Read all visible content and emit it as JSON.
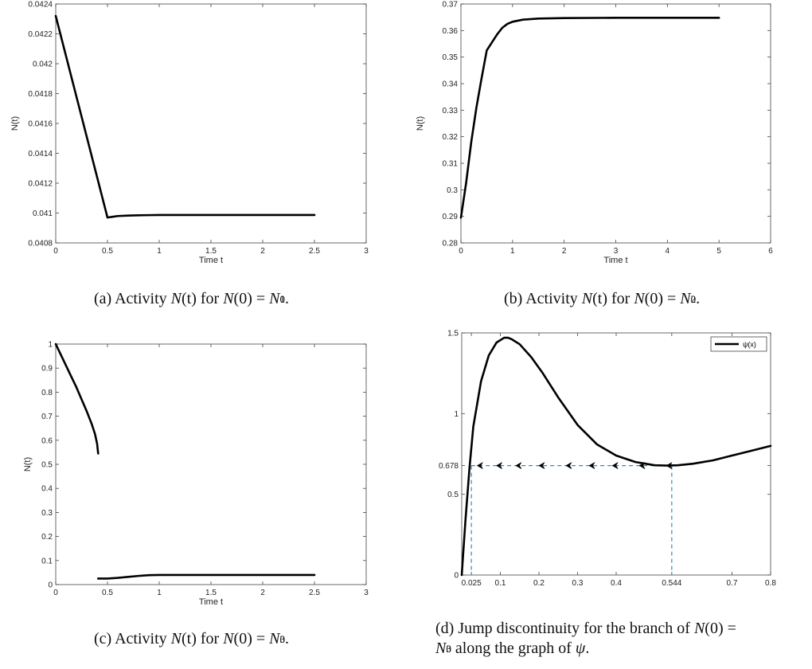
{
  "captions": {
    "a": {
      "label": "(a) Activity",
      "var": "N",
      "mid": "(t) for",
      "lhs": "N",
      "arg": "(0) =",
      "rhs": "N",
      "sup": "1",
      "sub": "0",
      "end": "."
    },
    "b": {
      "label": "(b) Activity",
      "var": "N",
      "mid": "(t) for",
      "lhs": "N",
      "arg": "(0) =",
      "rhs": "N",
      "sup": "2",
      "sub": "0",
      "end": "."
    },
    "c": {
      "label": "(c) Activity",
      "var": "N",
      "mid": "(t) for",
      "lhs": "N",
      "arg": "(0) =",
      "rhs": "N",
      "sup": "3",
      "sub": "0",
      "end": "."
    },
    "d": {
      "line1": "(d) Jump discontinuity for the branch of",
      "lhs": "N",
      "arg": "(0) =",
      "rhs": "N",
      "sup": "3",
      "sub": "0",
      "line2": "along the graph of",
      "psi": "ψ",
      "end": "."
    }
  },
  "chart_data": [
    {
      "id": "a",
      "type": "line",
      "xlabel": "Time t",
      "ylabel": "N(t)",
      "xlim": [
        0,
        3
      ],
      "ylim": [
        0.0408,
        0.0424
      ],
      "xticks": [
        0,
        0.5,
        1,
        1.5,
        2,
        2.5,
        3
      ],
      "xticklabels": [
        "0",
        "0.5",
        "1",
        "1.5",
        "2",
        "2.5",
        "3"
      ],
      "yticks": [
        0.0408,
        0.041,
        0.0412,
        0.0414,
        0.0416,
        0.0418,
        0.042,
        0.0422,
        0.0424
      ],
      "yticklabels": [
        "0.0408",
        "0.041",
        "0.0412",
        "0.0414",
        "0.0416",
        "0.0418",
        "0.042",
        "0.0422",
        "0.0424"
      ],
      "series": [
        {
          "x": [
            0,
            0.5,
            0.55,
            0.6,
            0.7,
            0.8,
            0.9,
            1.0,
            1.2,
            1.5,
            2.0,
            2.5
          ],
          "y": [
            0.04232,
            0.04097,
            0.040975,
            0.04098,
            0.040983,
            0.040985,
            0.040986,
            0.040987,
            0.040987,
            0.040987,
            0.040987,
            0.040987
          ]
        }
      ]
    },
    {
      "id": "b",
      "type": "line",
      "xlabel": "Time t",
      "ylabel": "N(t)",
      "xlim": [
        0,
        6
      ],
      "ylim": [
        0.28,
        0.37
      ],
      "xticks": [
        0,
        1,
        2,
        3,
        4,
        5,
        6
      ],
      "xticklabels": [
        "0",
        "1",
        "2",
        "3",
        "4",
        "5",
        "6"
      ],
      "yticks": [
        0.28,
        0.29,
        0.3,
        0.31,
        0.32,
        0.33,
        0.34,
        0.35,
        0.36,
        0.37
      ],
      "yticklabels": [
        "0.28",
        "0.29",
        "0.3",
        "0.31",
        "0.32",
        "0.33",
        "0.34",
        "0.35",
        "0.36",
        "0.37"
      ],
      "series": [
        {
          "x": [
            0,
            0.1,
            0.2,
            0.3,
            0.4,
            0.5,
            0.6,
            0.7,
            0.8,
            0.9,
            1.0,
            1.2,
            1.5,
            2.0,
            3.0,
            4.0,
            5.0
          ],
          "y": [
            0.2895,
            0.3025,
            0.318,
            0.331,
            0.342,
            0.3525,
            0.3555,
            0.3585,
            0.361,
            0.3625,
            0.3633,
            0.3641,
            0.3645,
            0.3647,
            0.3648,
            0.3648,
            0.3648
          ]
        }
      ]
    },
    {
      "id": "c",
      "type": "line",
      "xlabel": "Time t",
      "ylabel": "N(t)",
      "xlim": [
        0,
        3
      ],
      "ylim": [
        0,
        1
      ],
      "xticks": [
        0,
        0.5,
        1,
        1.5,
        2,
        2.5,
        3
      ],
      "xticklabels": [
        "0",
        "0.5",
        "1",
        "1.5",
        "2",
        "2.5",
        "3"
      ],
      "yticks": [
        0,
        0.1,
        0.2,
        0.3,
        0.4,
        0.5,
        0.6,
        0.7,
        0.8,
        0.9,
        1
      ],
      "yticklabels": [
        "0",
        "0.1",
        "0.2",
        "0.3",
        "0.4",
        "0.5",
        "0.6",
        "0.7",
        "0.8",
        "0.9",
        "1"
      ],
      "series": [
        {
          "x": [
            0,
            0.05,
            0.1,
            0.15,
            0.2,
            0.25,
            0.3,
            0.35,
            0.38,
            0.4,
            0.41
          ],
          "y": [
            1.0,
            0.955,
            0.91,
            0.865,
            0.82,
            0.77,
            0.72,
            0.665,
            0.625,
            0.585,
            0.545
          ]
        },
        {
          "x": [
            0.41,
            0.5,
            0.6,
            0.7,
            0.8,
            0.9,
            1.0,
            1.5,
            2.0,
            2.5
          ],
          "y": [
            0.025,
            0.025,
            0.028,
            0.032,
            0.036,
            0.039,
            0.04,
            0.04,
            0.04,
            0.04
          ]
        }
      ]
    },
    {
      "id": "d",
      "type": "line",
      "xlim": [
        0,
        0.8
      ],
      "ylim": [
        0,
        1.5
      ],
      "xticks": [
        0.025,
        0.1,
        0.2,
        0.3,
        0.4,
        0.544,
        0.7,
        0.8
      ],
      "xticklabels": [
        "0.025",
        "0.1",
        "0.2",
        "0.3",
        "0.4",
        "0.544",
        "0.7",
        "0.8"
      ],
      "yticks": [
        0,
        0.5,
        0.678,
        1,
        1.5
      ],
      "yticklabels": [
        "0",
        "0.5",
        "0.678",
        "1",
        "1.5"
      ],
      "legend": {
        "label": "ψ(x)",
        "position": "top-right"
      },
      "series": [
        {
          "name": "ψ(x)",
          "x": [
            0,
            0.01,
            0.02,
            0.03,
            0.05,
            0.07,
            0.09,
            0.11,
            0.12,
            0.13,
            0.15,
            0.18,
            0.21,
            0.25,
            0.3,
            0.35,
            0.4,
            0.45,
            0.5,
            0.53,
            0.56,
            0.6,
            0.65,
            0.7,
            0.75,
            0.8
          ],
          "y": [
            0,
            0.35,
            0.66,
            0.92,
            1.2,
            1.36,
            1.44,
            1.47,
            1.47,
            1.46,
            1.43,
            1.35,
            1.25,
            1.1,
            0.93,
            0.81,
            0.74,
            0.7,
            0.68,
            0.678,
            0.68,
            0.69,
            0.71,
            0.74,
            0.77,
            0.8
          ]
        }
      ],
      "annotations": {
        "jump": {
          "from_x": 0.544,
          "to_x": 0.025,
          "y": 0.678,
          "style": "dashed",
          "color": "#2b8cc4"
        },
        "arrows_x": [
          0.04,
          0.09,
          0.14,
          0.2,
          0.27,
          0.33,
          0.39,
          0.46,
          0.53
        ],
        "verticals": [
          0.025,
          0.544
        ]
      }
    }
  ]
}
